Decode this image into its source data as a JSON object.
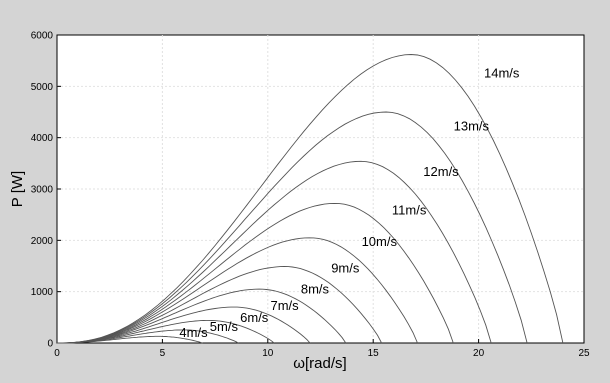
{
  "chart_data": {
    "type": "line",
    "xlabel": "ω[rad/s]",
    "ylabel": "P [W]",
    "xlim": [
      0,
      25
    ],
    "ylim": [
      0,
      6000
    ],
    "xticks": [
      0,
      5,
      10,
      15,
      20,
      25
    ],
    "yticks": [
      0,
      1000,
      2000,
      3000,
      4000,
      5000,
      6000
    ],
    "grid": true,
    "series": [
      {
        "name": "4m/s",
        "peak_x": 4.8,
        "peak_y": 130,
        "end_x": 6.9
      },
      {
        "name": "5m/s",
        "peak_x": 6.0,
        "peak_y": 255,
        "end_x": 8.6
      },
      {
        "name": "6m/s",
        "peak_x": 7.2,
        "peak_y": 440,
        "end_x": 10.3
      },
      {
        "name": "7m/s",
        "peak_x": 8.4,
        "peak_y": 700,
        "end_x": 12.0
      },
      {
        "name": "8m/s",
        "peak_x": 9.6,
        "peak_y": 1050,
        "end_x": 13.7
      },
      {
        "name": "9m/s",
        "peak_x": 10.8,
        "peak_y": 1490,
        "end_x": 15.4
      },
      {
        "name": "10m/s",
        "peak_x": 12.0,
        "peak_y": 2050,
        "end_x": 17.1
      },
      {
        "name": "11m/s",
        "peak_x": 13.2,
        "peak_y": 2720,
        "end_x": 18.8
      },
      {
        "name": "12m/s",
        "peak_x": 14.4,
        "peak_y": 3540,
        "end_x": 20.6
      },
      {
        "name": "13m/s",
        "peak_x": 15.6,
        "peak_y": 4500,
        "end_x": 22.3
      },
      {
        "name": "14m/s",
        "peak_x": 16.8,
        "peak_y": 5620,
        "end_x": 24.0
      }
    ]
  }
}
